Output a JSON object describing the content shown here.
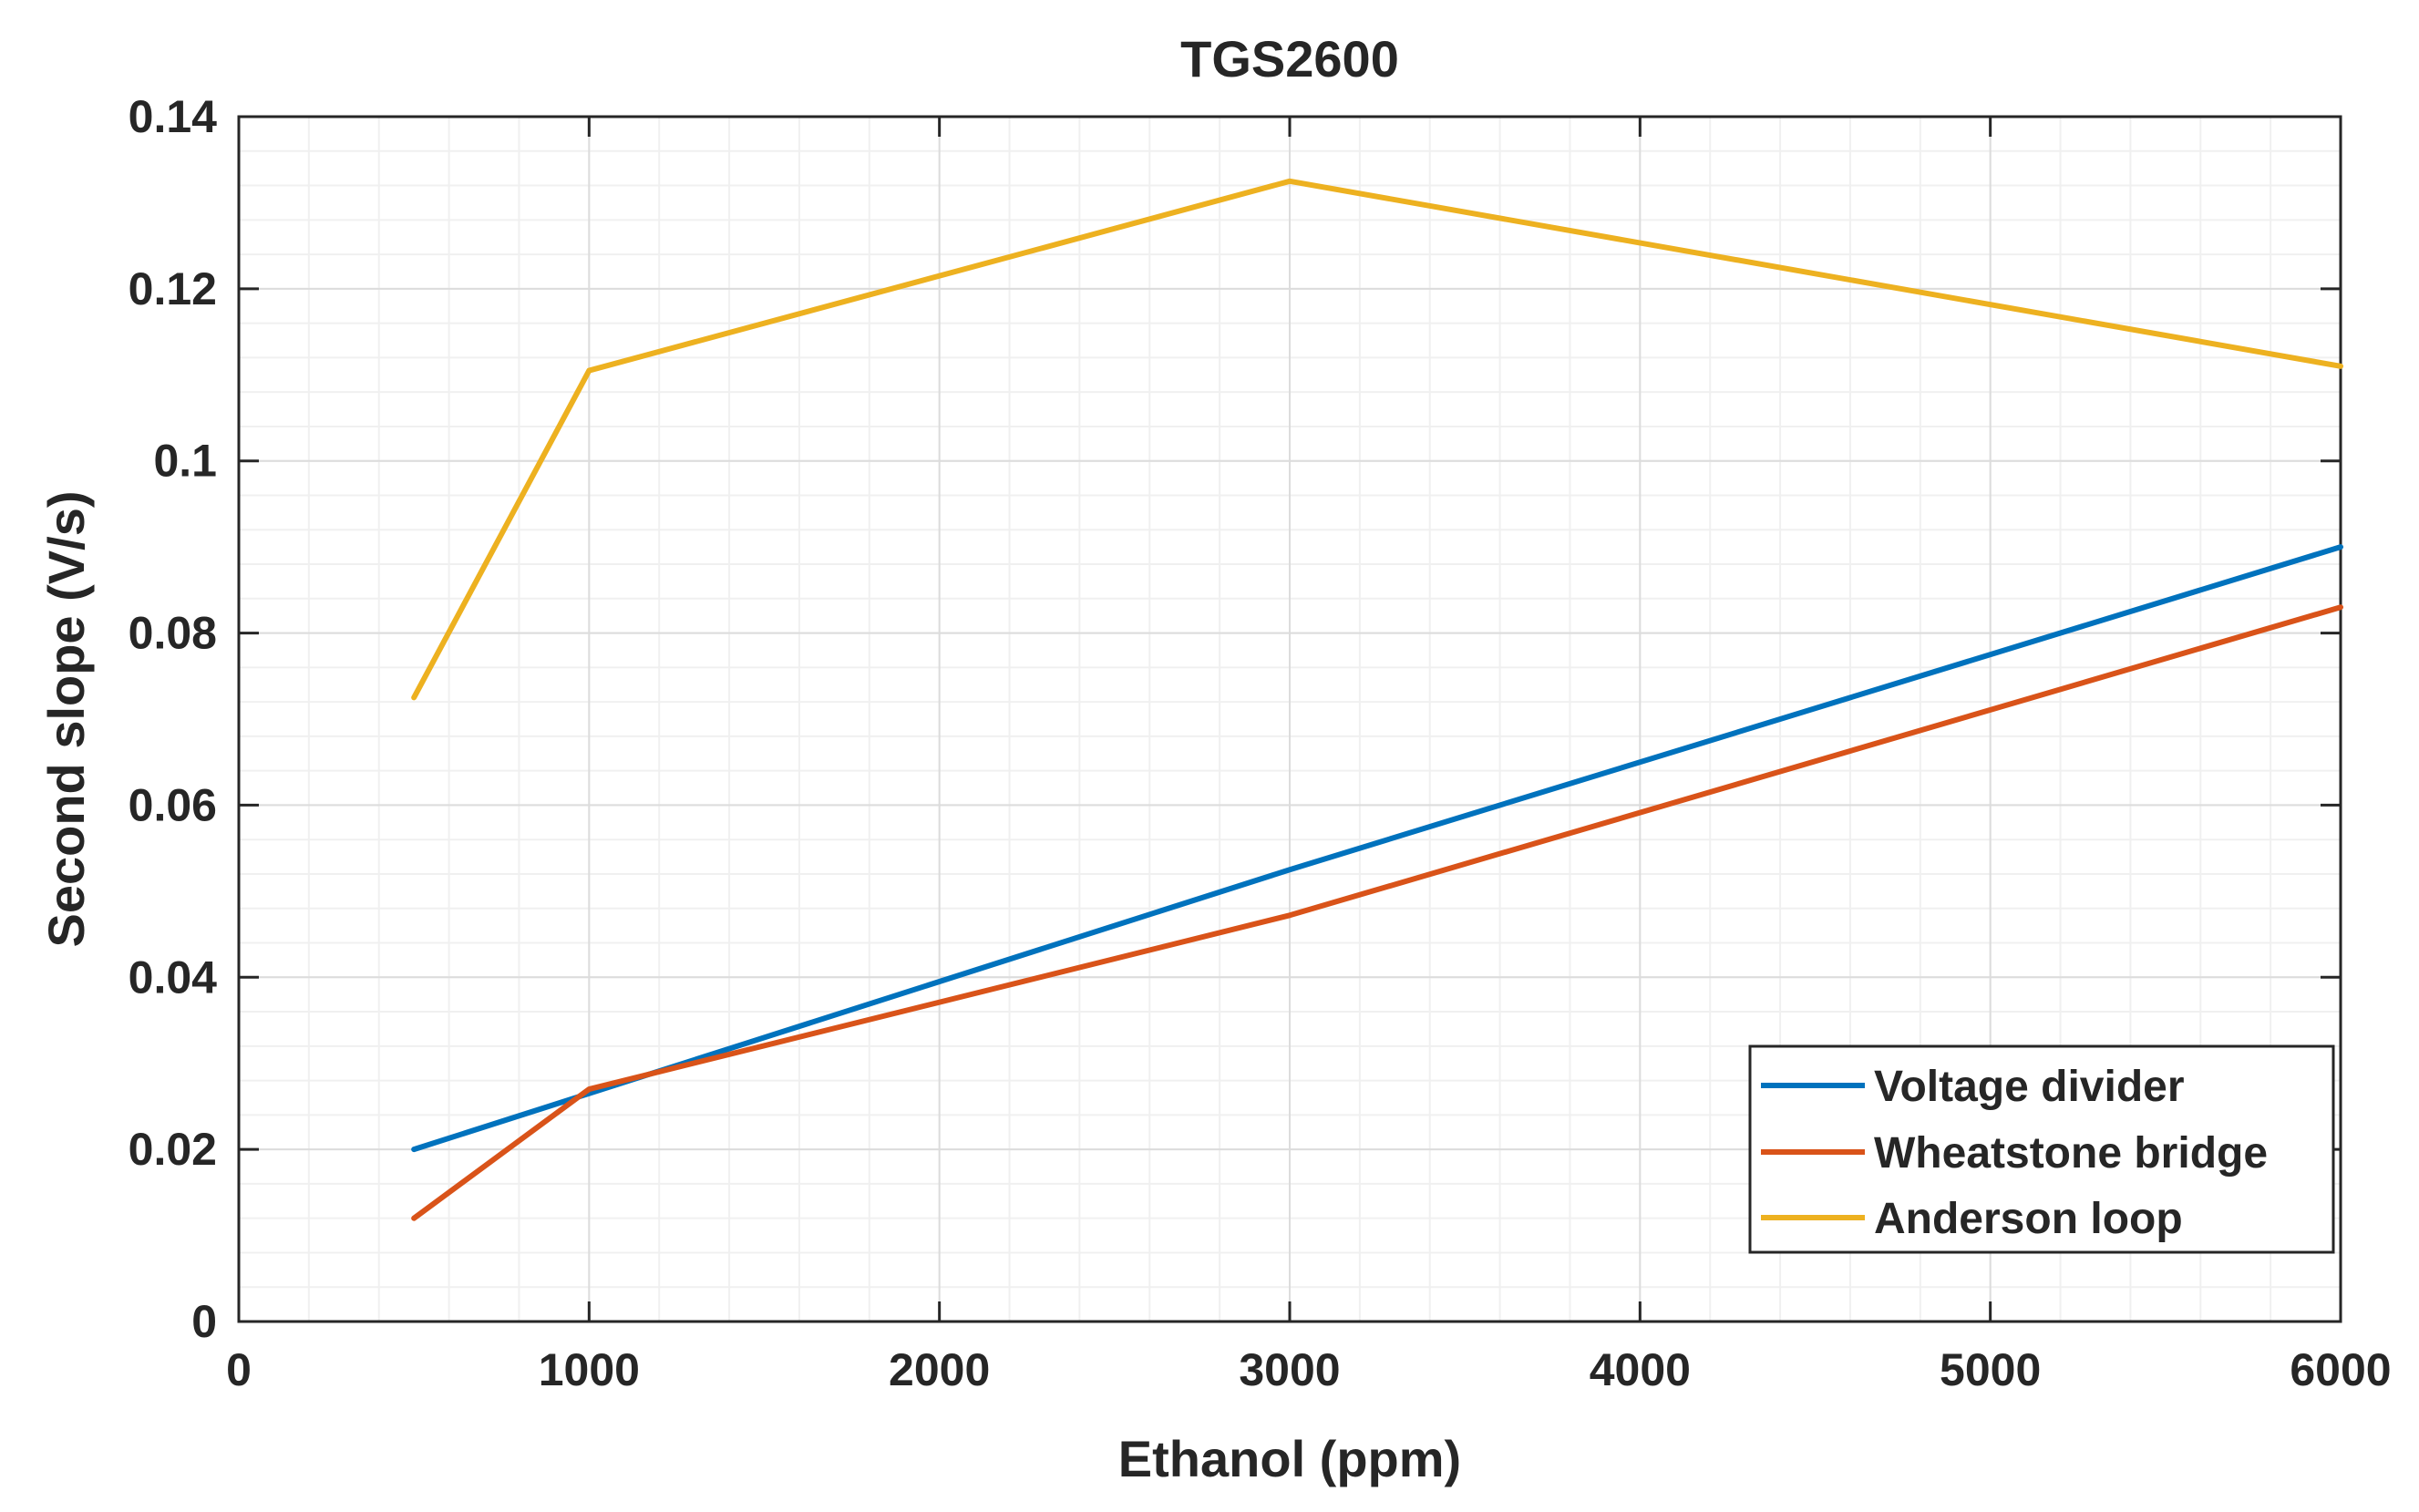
{
  "chart_data": {
    "type": "line",
    "title": "TGS2600",
    "xlabel": "Ethanol (ppm)",
    "ylabel": "Second slope (V/s)",
    "xlim": [
      0,
      6000
    ],
    "ylim": [
      0,
      0.14
    ],
    "xticks": [
      0,
      1000,
      2000,
      3000,
      4000,
      5000,
      6000
    ],
    "yticks": [
      0,
      0.02,
      0.04,
      0.06,
      0.08,
      0.1,
      0.12,
      0.14
    ],
    "xtick_labels": [
      "0",
      "1000",
      "2000",
      "3000",
      "4000",
      "5000",
      "6000"
    ],
    "ytick_labels": [
      "0",
      "0.02",
      "0.04",
      "0.06",
      "0.08",
      "0.1",
      "0.12",
      "0.14"
    ],
    "grid": true,
    "minor_grid": true,
    "legend_position": "bottom-right",
    "series": [
      {
        "name": "Voltage divider",
        "color": "#0072BD",
        "x": [
          500,
          1000,
          3000,
          6000
        ],
        "y": [
          0.02,
          0.0265,
          0.0525,
          0.09
        ]
      },
      {
        "name": "Wheatstone bridge",
        "color": "#D95319",
        "x": [
          500,
          1000,
          3000,
          6000
        ],
        "y": [
          0.012,
          0.027,
          0.0472,
          0.083
        ]
      },
      {
        "name": "Anderson loop",
        "color": "#EDB120",
        "x": [
          500,
          1000,
          3000,
          6000
        ],
        "y": [
          0.0725,
          0.1105,
          0.1325,
          0.111
        ]
      }
    ]
  }
}
